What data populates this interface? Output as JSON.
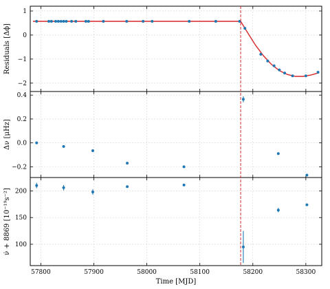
{
  "chart_data": {
    "type": "scatter",
    "xlabel": "Time [MJD]",
    "xlim": [
      57780,
      58330
    ],
    "x_ticks": [
      57800,
      57900,
      58000,
      58100,
      58200,
      58300
    ],
    "event_line_x": 58177,
    "colors": {
      "points": "#1f77b4",
      "model": "#d62728",
      "event_line": "#d62728"
    },
    "panels": [
      {
        "ylabel": "Residuals [Δϕ]",
        "ylim": [
          -2.35,
          1.2
        ],
        "y_ticks": [
          1,
          0,
          -1,
          -2
        ],
        "y_tick_labels": [
          "1",
          "0",
          "−1",
          "−2"
        ],
        "points": [
          {
            "x": 57792,
            "y": 0.57
          },
          {
            "x": 57815,
            "y": 0.57
          },
          {
            "x": 57820,
            "y": 0.57
          },
          {
            "x": 57828,
            "y": 0.57
          },
          {
            "x": 57833,
            "y": 0.57
          },
          {
            "x": 57838,
            "y": 0.57
          },
          {
            "x": 57843,
            "y": 0.57
          },
          {
            "x": 57848,
            "y": 0.57
          },
          {
            "x": 57858,
            "y": 0.57
          },
          {
            "x": 57866,
            "y": 0.57
          },
          {
            "x": 57885,
            "y": 0.57
          },
          {
            "x": 57890,
            "y": 0.57
          },
          {
            "x": 57918,
            "y": 0.57
          },
          {
            "x": 57962,
            "y": 0.57
          },
          {
            "x": 57993,
            "y": 0.57
          },
          {
            "x": 58010,
            "y": 0.57
          },
          {
            "x": 58080,
            "y": 0.57
          },
          {
            "x": 58130,
            "y": 0.57
          },
          {
            "x": 58175,
            "y": 0.57
          },
          {
            "x": 58185,
            "y": 0.28
          },
          {
            "x": 58215,
            "y": -0.8
          },
          {
            "x": 58228,
            "y": -1.08
          },
          {
            "x": 58240,
            "y": -1.28
          },
          {
            "x": 58250,
            "y": -1.45
          },
          {
            "x": 58260,
            "y": -1.58
          },
          {
            "x": 58275,
            "y": -1.7
          },
          {
            "x": 58300,
            "y": -1.7
          },
          {
            "x": 58323,
            "y": -1.55
          }
        ],
        "model": {
          "x": [
            57785,
            58177,
            58190,
            58205,
            58220,
            58235,
            58250,
            58265,
            58280,
            58295,
            58310,
            58323
          ],
          "y": [
            0.57,
            0.57,
            0.1,
            -0.42,
            -0.86,
            -1.22,
            -1.48,
            -1.64,
            -1.72,
            -1.72,
            -1.66,
            -1.58
          ]
        }
      },
      {
        "ylabel": "Δν [μHz]",
        "ylim": [
          -0.29,
          0.43
        ],
        "y_ticks": [
          0.4,
          0.2,
          0.0,
          -0.2
        ],
        "y_tick_labels": [
          "0.4",
          "0.2",
          "0.0",
          "−0.2"
        ],
        "points": [
          {
            "x": 57792,
            "y": 0.0,
            "err": 0.005
          },
          {
            "x": 57843,
            "y": -0.03,
            "err": 0.005
          },
          {
            "x": 57898,
            "y": -0.065,
            "err": 0.005
          },
          {
            "x": 57963,
            "y": -0.17,
            "err": 0.005
          },
          {
            "x": 58070,
            "y": -0.2,
            "err": 0.005
          },
          {
            "x": 58182,
            "y": 0.365,
            "err": 0.025
          },
          {
            "x": 58248,
            "y": -0.09,
            "err": 0.005
          },
          {
            "x": 58302,
            "y": -0.27,
            "err": 0.005
          }
        ]
      },
      {
        "ylabel": "ν̇ + 8869 [10⁻¹⁹s⁻²]",
        "ylim": [
          60,
          225
        ],
        "y_ticks": [
          200,
          150,
          100
        ],
        "y_tick_labels": [
          "200",
          "150",
          "100"
        ],
        "points": [
          {
            "x": 57792,
            "y": 210,
            "err": 5
          },
          {
            "x": 57843,
            "y": 206,
            "err": 5
          },
          {
            "x": 57898,
            "y": 198,
            "err": 5
          },
          {
            "x": 57963,
            "y": 208,
            "err": 2
          },
          {
            "x": 58070,
            "y": 211,
            "err": 2
          },
          {
            "x": 58182,
            "y": 95,
            "err": 30
          },
          {
            "x": 58248,
            "y": 164,
            "err": 4
          },
          {
            "x": 58302,
            "y": 174,
            "err": 2
          }
        ]
      }
    ]
  }
}
